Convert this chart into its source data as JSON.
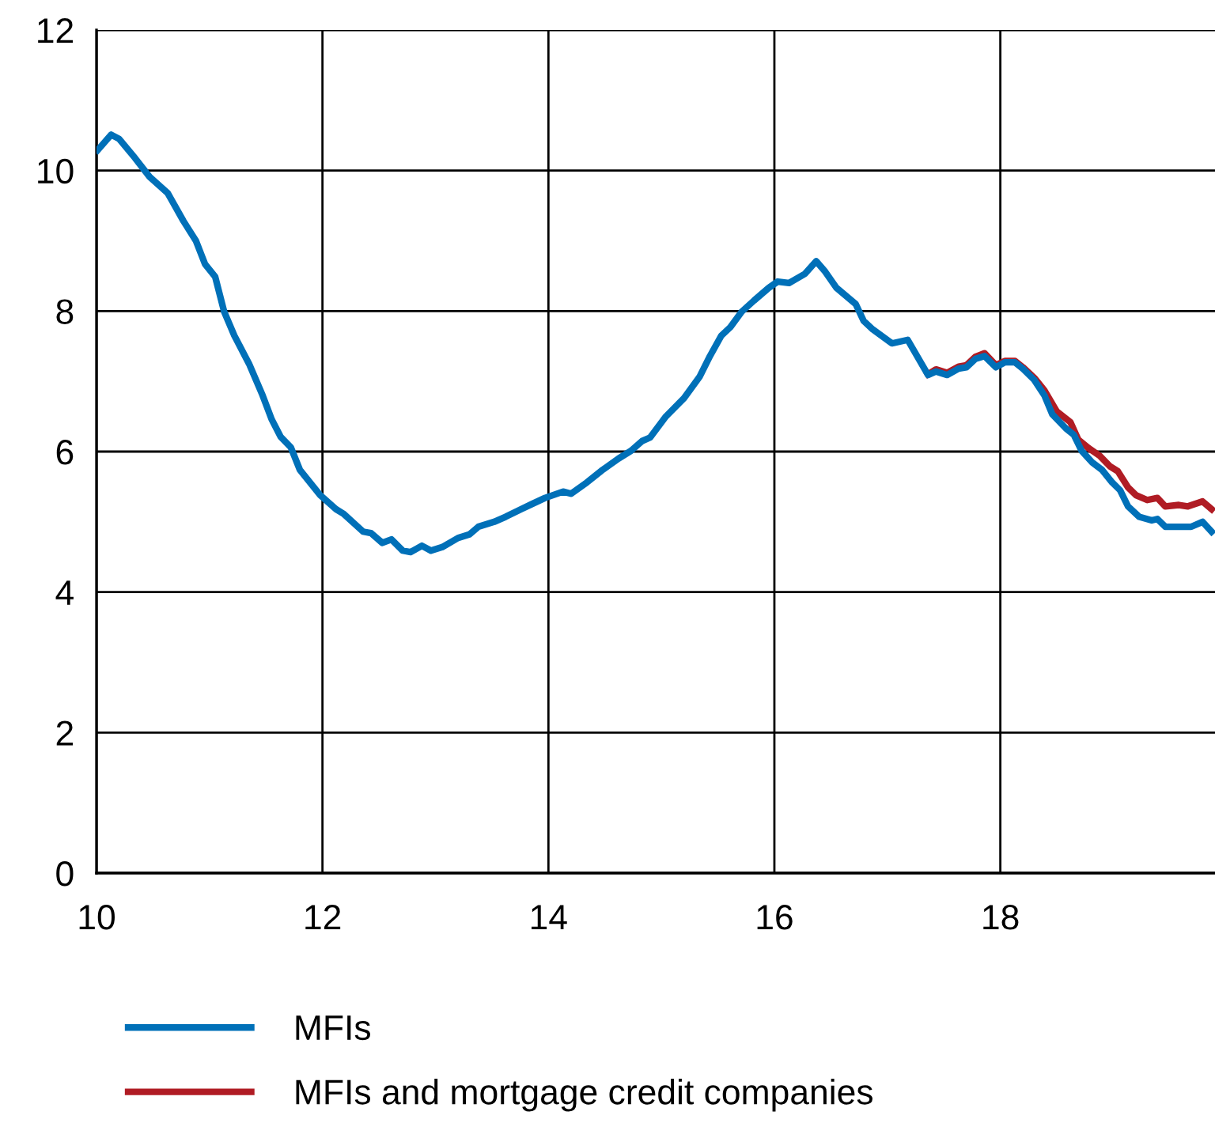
{
  "chart_data": {
    "type": "line",
    "xlim": [
      10,
      19.9
    ],
    "xticks": [
      10,
      12,
      14,
      16,
      18
    ],
    "ylim": [
      0,
      12
    ],
    "yticks": [
      0,
      2,
      4,
      6,
      8,
      10,
      12
    ],
    "grid": true,
    "legend": "bottom",
    "line_style": "solid",
    "marker": "none",
    "series": [
      {
        "name": "MFIs",
        "color": "#0070b8",
        "x": [
          10.01,
          10.13,
          10.2,
          10.34,
          10.47,
          10.63,
          10.77,
          10.88,
          10.96,
          11.05,
          11.13,
          11.22,
          11.35,
          11.47,
          11.55,
          11.63,
          11.72,
          11.8,
          11.98,
          12.12,
          12.19,
          12.36,
          12.43,
          12.53,
          12.61,
          12.71,
          12.78,
          12.88,
          12.96,
          13.06,
          13.2,
          13.3,
          13.38,
          13.52,
          13.62,
          13.76,
          13.85,
          13.97,
          14.13,
          14.2,
          14.34,
          14.48,
          14.62,
          14.73,
          14.83,
          14.9,
          15.04,
          15.2,
          15.34,
          15.43,
          15.53,
          15.61,
          15.71,
          15.82,
          15.95,
          16.03,
          16.13,
          16.27,
          16.37,
          16.45,
          16.55,
          16.72,
          16.79,
          16.87,
          17.04,
          17.18,
          17.36,
          17.43,
          17.53,
          17.63,
          17.7,
          17.78,
          17.86,
          17.96,
          18.04,
          18.13,
          18.2,
          18.3,
          18.39,
          18.46,
          18.58,
          18.65,
          18.72,
          18.81,
          18.9,
          18.99,
          19.06,
          19.13,
          19.23,
          19.34,
          19.39,
          19.46,
          19.55,
          19.69,
          19.79,
          19.87
        ],
        "values": [
          10.29,
          10.51,
          10.45,
          10.18,
          9.91,
          9.68,
          9.28,
          9.0,
          8.67,
          8.49,
          7.99,
          7.65,
          7.25,
          6.8,
          6.46,
          6.21,
          6.06,
          5.74,
          5.38,
          5.18,
          5.11,
          4.86,
          4.84,
          4.7,
          4.75,
          4.59,
          4.57,
          4.66,
          4.59,
          4.64,
          4.77,
          4.82,
          4.93,
          5.0,
          5.07,
          5.18,
          5.25,
          5.34,
          5.43,
          5.4,
          5.56,
          5.74,
          5.9,
          6.01,
          6.15,
          6.2,
          6.5,
          6.76,
          7.07,
          7.36,
          7.65,
          7.77,
          7.99,
          8.15,
          8.33,
          8.42,
          8.4,
          8.53,
          8.71,
          8.56,
          8.33,
          8.1,
          7.86,
          7.74,
          7.54,
          7.59,
          7.09,
          7.14,
          7.09,
          7.18,
          7.2,
          7.32,
          7.36,
          7.2,
          7.27,
          7.27,
          7.18,
          7.02,
          6.8,
          6.53,
          6.33,
          6.24,
          6.01,
          5.85,
          5.74,
          5.56,
          5.45,
          5.22,
          5.07,
          5.02,
          5.04,
          4.93,
          4.93,
          4.93,
          5.0,
          4.86
        ]
      },
      {
        "name": "MFIs and mortgage credit companies",
        "color": "#b01c24",
        "x": [
          17.36,
          17.43,
          17.53,
          17.63,
          17.7,
          17.78,
          17.86,
          17.96,
          18.04,
          18.13,
          18.2,
          18.3,
          18.39,
          18.5,
          18.62,
          18.69,
          18.78,
          18.88,
          18.97,
          19.04,
          19.13,
          19.2,
          19.3,
          19.39,
          19.46,
          19.58,
          19.66,
          19.79,
          19.87
        ],
        "values": [
          7.1,
          7.17,
          7.12,
          7.21,
          7.23,
          7.35,
          7.4,
          7.23,
          7.29,
          7.29,
          7.2,
          7.05,
          6.87,
          6.57,
          6.42,
          6.17,
          6.05,
          5.94,
          5.79,
          5.72,
          5.49,
          5.38,
          5.31,
          5.34,
          5.22,
          5.24,
          5.22,
          5.29,
          5.18
        ]
      }
    ]
  }
}
